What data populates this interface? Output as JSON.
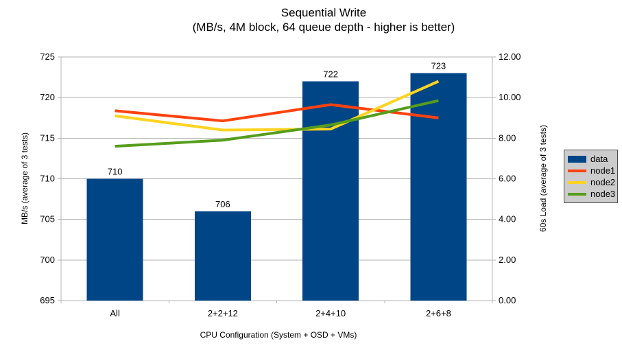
{
  "title": "Sequential Write",
  "subtitle": "(MB/s, 4M block, 64 queue depth - higher is better)",
  "chart_data": {
    "type": "combo (bar + line)",
    "categories": [
      "All",
      "2+2+12",
      "2+4+10",
      "2+6+8"
    ],
    "bar_series": {
      "name": "data",
      "axis": "left",
      "values": [
        710,
        706,
        722,
        723
      ],
      "labels": [
        "710",
        "706",
        "722",
        "723"
      ],
      "color": "#004586"
    },
    "line_series": [
      {
        "name": "node1",
        "axis": "right",
        "color": "#FF420E",
        "values": [
          9.35,
          8.85,
          9.65,
          9.0
        ]
      },
      {
        "name": "node2",
        "axis": "right",
        "color": "#FFD320",
        "values": [
          9.1,
          8.4,
          8.45,
          10.8
        ]
      },
      {
        "name": "node3",
        "axis": "right",
        "color": "#579D1C",
        "values": [
          7.6,
          7.9,
          8.65,
          9.85
        ]
      }
    ],
    "left_axis": {
      "title": "MB/s (average of 3 tests)",
      "min": 695,
      "max": 725,
      "step": 5,
      "tick_labels": [
        "695",
        "700",
        "705",
        "710",
        "715",
        "720",
        "725"
      ]
    },
    "right_axis": {
      "title": "60s Load (average of 3 tests)",
      "min": 0,
      "max": 12,
      "step": 2,
      "tick_labels": [
        "0.00",
        "2.00",
        "4.00",
        "6.00",
        "8.00",
        "10.00",
        "12.00"
      ]
    },
    "x_axis": {
      "title": "CPU Configuration (System + OSD + VMs)"
    },
    "legend": {
      "position": "right",
      "items": [
        {
          "label": "data",
          "color": "#004586",
          "type": "bar"
        },
        {
          "label": "node1",
          "color": "#FF420E",
          "type": "line"
        },
        {
          "label": "node2",
          "color": "#FFD320",
          "type": "line"
        },
        {
          "label": "node3",
          "color": "#579D1C",
          "type": "line"
        }
      ]
    },
    "grid": true,
    "colors": {
      "background": "#FFFFFF",
      "grid": "#B3B3B3",
      "axis": "#B3B3B3",
      "text": "#000000",
      "legend_background": "#CCCCCC",
      "legend_border": "#4D4D4D"
    }
  }
}
